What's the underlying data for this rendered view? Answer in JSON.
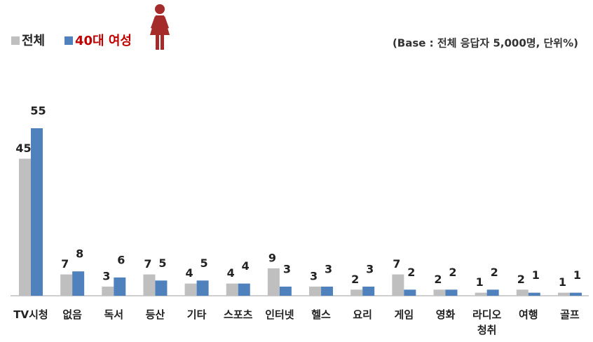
{
  "chart_data": {
    "type": "bar",
    "legend_labels_note": null,
    "note": "(Base : 전체 응답자 5,000명, 단위%)",
    "categories": [
      "TV시청",
      "없음",
      "독서",
      "등산",
      "기타",
      "스포츠",
      "인터넷",
      "헬스",
      "요리",
      "게임",
      "영화",
      "라디오 청취",
      "여행",
      "골프"
    ],
    "series": [
      {
        "name": "전체",
        "color": "#bfbfbf",
        "values": [
          45,
          7,
          3,
          7,
          4,
          4,
          9,
          3,
          2,
          7,
          2,
          1,
          2,
          1
        ]
      },
      {
        "name": "40대 여성",
        "color": "#4f81bd",
        "values": [
          55,
          8,
          6,
          5,
          5,
          4,
          3,
          3,
          3,
          2,
          2,
          2,
          1,
          1
        ]
      }
    ]
  }
}
